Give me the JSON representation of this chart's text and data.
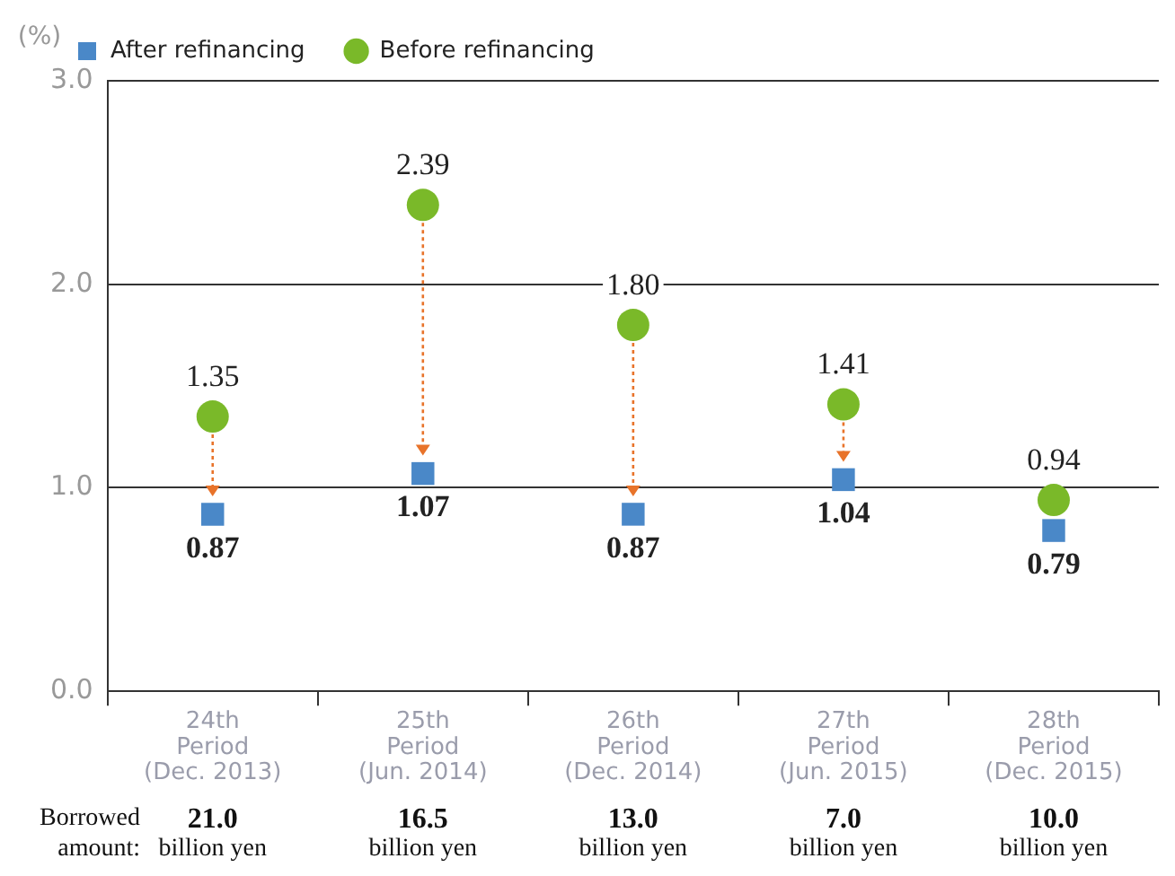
{
  "chart_data": {
    "type": "scatter",
    "ylabel": "(%)",
    "categories": [
      "24th\nPeriod\n(Dec. 2013)",
      "25th\nPeriod\n(Jun. 2014)",
      "26th\nPeriod\n(Dec. 2014)",
      "27th\nPeriod\n(Jun. 2015)",
      "28th\nPeriod\n(Dec. 2015)"
    ],
    "series": [
      {
        "name": "After refinancing",
        "color": "#4a88c8",
        "marker": "square",
        "values": [
          0.87,
          1.07,
          0.87,
          1.04,
          0.79
        ],
        "value_labels": [
          "0.87",
          "1.07",
          "0.87",
          "1.04",
          "0.79"
        ]
      },
      {
        "name": "Before refinancing",
        "color": "#7ab929",
        "marker": "circle",
        "values": [
          1.35,
          2.39,
          1.8,
          1.41,
          0.94
        ],
        "value_labels": [
          "1.35",
          "2.39",
          "1.80",
          "1.41",
          "0.94"
        ]
      }
    ],
    "ylim": [
      0,
      3
    ],
    "yticks": [
      {
        "value": 0,
        "label": "0.0"
      },
      {
        "value": 1,
        "label": "1.0"
      },
      {
        "value": 2,
        "label": "2.0"
      },
      {
        "value": 3,
        "label": "3.0"
      }
    ],
    "grid": "y",
    "legend": "top left",
    "annotations": [
      "Borrowed\namount:",
      "21.0\nbillion yen",
      "16.5\nbillion yen",
      "13.0\nbillion yen",
      "7.0\nbillion yen",
      "10.0\nbillion yen"
    ]
  }
}
